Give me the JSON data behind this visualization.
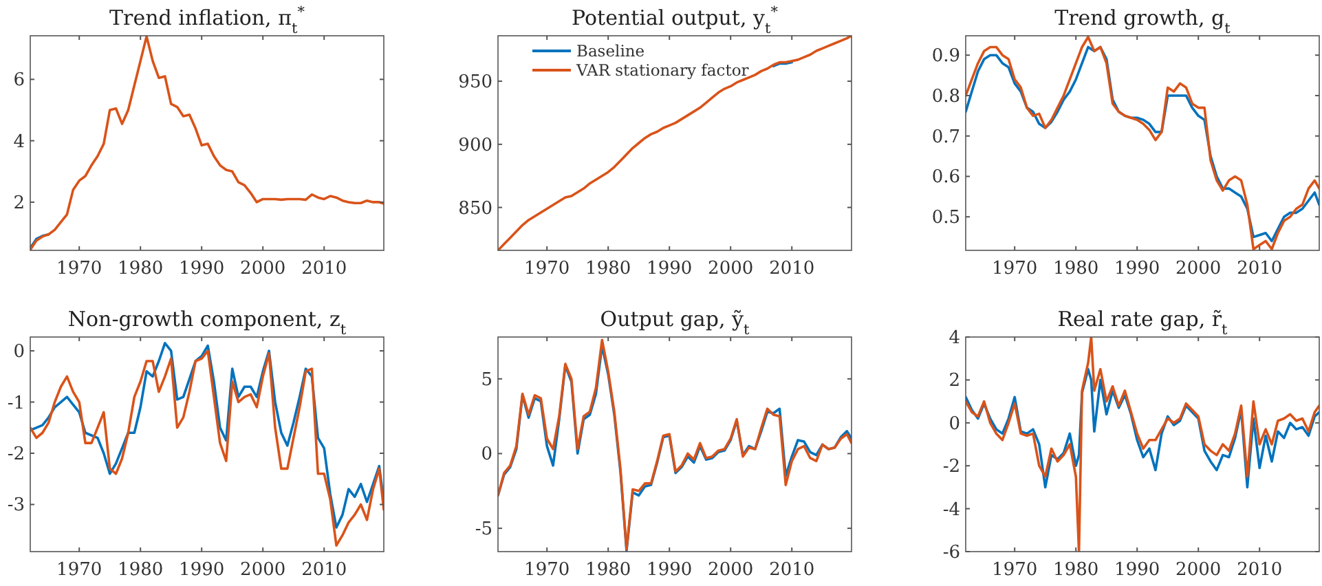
{
  "chart_data": [
    {
      "type": "line",
      "title": "Trend inflation, π$_{t}$$^{*}$",
      "xlim": [
        1962,
        2019.75
      ],
      "xticks": [
        1970,
        1980,
        1990,
        2000,
        2010
      ],
      "ylim": [
        0.43,
        7.42
      ],
      "yticks": [
        2,
        4,
        6
      ],
      "grid": false,
      "legend": false,
      "x": [
        1962,
        1963,
        1964,
        1965,
        1966,
        1967,
        1968,
        1969,
        1970,
        1971,
        1972,
        1973,
        1974,
        1975,
        1976,
        1977,
        1978,
        1979,
        1980,
        1981,
        1982,
        1983,
        1984,
        1985,
        1986,
        1987,
        1988,
        1989,
        1990,
        1991,
        1992,
        1993,
        1994,
        1995,
        1996,
        1997,
        1998,
        1999,
        2000,
        2001,
        2002,
        2003,
        2004,
        2005,
        2006,
        2007,
        2008,
        2009,
        2010,
        2011,
        2012,
        2013,
        2014,
        2015,
        2016,
        2017,
        2018,
        2019,
        2019.75
      ],
      "series": [
        {
          "color": "#0072bd",
          "values": [
            0.5,
            0.8,
            0.9,
            0.95,
            null,
            null,
            null,
            null,
            null,
            null,
            null,
            null,
            null,
            null,
            null,
            null,
            null,
            null,
            null,
            null,
            null,
            null,
            null,
            null,
            null,
            null,
            null,
            null,
            null,
            null,
            null,
            null,
            null,
            null,
            null,
            null,
            null,
            null,
            null,
            null,
            null,
            null,
            null,
            null,
            null,
            null,
            null,
            null,
            null,
            null,
            null,
            null,
            null,
            null,
            null,
            null,
            null,
            null,
            null
          ]
        },
        {
          "color": "#d95319",
          "values": [
            0.45,
            0.75,
            0.88,
            0.95,
            1.1,
            1.35,
            1.6,
            2.4,
            2.7,
            2.85,
            3.2,
            3.5,
            3.9,
            5.0,
            5.05,
            4.55,
            5.0,
            5.8,
            6.6,
            7.4,
            6.6,
            6.05,
            6.1,
            5.2,
            5.1,
            4.8,
            4.85,
            4.4,
            3.85,
            3.9,
            3.5,
            3.2,
            3.05,
            3.0,
            2.65,
            2.55,
            2.3,
            2.0,
            2.1,
            2.1,
            2.1,
            2.08,
            2.1,
            2.1,
            2.1,
            2.08,
            2.25,
            2.15,
            2.1,
            2.2,
            2.15,
            2.05,
            2.0,
            1.97,
            1.97,
            2.05,
            2.0,
            2.0,
            1.95
          ]
        }
      ]
    },
    {
      "type": "line",
      "title": "Potential output, y$_{t}$$^{*}$",
      "xlim": [
        1962,
        2019.75
      ],
      "xticks": [
        1970,
        1980,
        1990,
        2000,
        2010
      ],
      "ylim": [
        816,
        986
      ],
      "yticks": [
        850,
        900,
        950
      ],
      "grid": false,
      "legend": "top",
      "x": [
        1962,
        1963,
        1964,
        1965,
        1966,
        1967,
        1968,
        1969,
        1970,
        1971,
        1972,
        1973,
        1974,
        1975,
        1976,
        1977,
        1978,
        1979,
        1980,
        1981,
        1982,
        1983,
        1984,
        1985,
        1986,
        1987,
        1988,
        1989,
        1990,
        1991,
        1992,
        1993,
        1994,
        1995,
        1996,
        1997,
        1998,
        1999,
        2000,
        2001,
        2002,
        2003,
        2004,
        2005,
        2006,
        2007,
        2008,
        2009,
        2010,
        2011,
        2012,
        2013,
        2014,
        2015,
        2016,
        2017,
        2018,
        2019,
        2019.75
      ],
      "series": [
        {
          "name": "Baseline",
          "color": "#0072bd",
          "values": [
            null,
            null,
            null,
            null,
            null,
            null,
            null,
            null,
            null,
            null,
            null,
            null,
            null,
            null,
            null,
            null,
            null,
            null,
            null,
            null,
            null,
            null,
            null,
            null,
            null,
            null,
            null,
            null,
            null,
            null,
            null,
            null,
            null,
            null,
            null,
            null,
            null,
            null,
            null,
            null,
            null,
            null,
            null,
            null,
            null,
            962,
            964,
            964,
            965,
            null,
            null,
            null,
            null,
            null,
            null,
            null,
            null,
            null,
            null
          ]
        },
        {
          "name": "VAR stationary factor",
          "color": "#d95319",
          "values": [
            816,
            821,
            826,
            831,
            836,
            840,
            843,
            846,
            849,
            852,
            855,
            858,
            859,
            862,
            865,
            869,
            872,
            875,
            878,
            882,
            887,
            892,
            897,
            901,
            905,
            908,
            910,
            913,
            915,
            917,
            920,
            923,
            926,
            929,
            933,
            937,
            941,
            944,
            946,
            949,
            951,
            953,
            955,
            958,
            960,
            963,
            965,
            965,
            966,
            967,
            969,
            971,
            974,
            976,
            978,
            980,
            982,
            984,
            986
          ]
        }
      ]
    },
    {
      "type": "line",
      "title": "Trend growth, g$_{t}$",
      "xlim": [
        1962,
        2019.75
      ],
      "xticks": [
        1970,
        1980,
        1990,
        2000,
        2010
      ],
      "ylim": [
        0.417,
        0.948
      ],
      "yticks": [
        0.5,
        0.6,
        0.7,
        0.8,
        0.9
      ],
      "grid": false,
      "legend": false,
      "x": [
        1962,
        1963,
        1964,
        1965,
        1966,
        1967,
        1968,
        1969,
        1970,
        1971,
        1972,
        1973,
        1974,
        1975,
        1976,
        1977,
        1978,
        1979,
        1980,
        1981,
        1982,
        1983,
        1984,
        1985,
        1986,
        1987,
        1988,
        1989,
        1990,
        1991,
        1992,
        1993,
        1994,
        1995,
        1996,
        1997,
        1998,
        1999,
        2000,
        2001,
        2002,
        2003,
        2004,
        2005,
        2006,
        2007,
        2008,
        2009,
        2010,
        2011,
        2012,
        2013,
        2014,
        2015,
        2016,
        2017,
        2018,
        2019,
        2019.75
      ],
      "series": [
        {
          "color": "#0072bd",
          "values": [
            0.76,
            0.81,
            0.86,
            0.89,
            0.9,
            0.9,
            0.88,
            0.87,
            0.83,
            0.81,
            0.77,
            0.76,
            0.73,
            0.72,
            0.735,
            0.76,
            0.79,
            0.81,
            0.84,
            0.88,
            0.92,
            0.91,
            0.92,
            0.89,
            0.79,
            0.76,
            0.75,
            0.745,
            0.745,
            0.74,
            0.73,
            0.71,
            0.71,
            0.8,
            0.8,
            0.8,
            0.8,
            0.77,
            0.75,
            0.74,
            0.65,
            0.6,
            0.57,
            0.57,
            0.56,
            0.55,
            0.52,
            0.45,
            0.455,
            0.46,
            0.44,
            0.47,
            0.5,
            0.51,
            0.51,
            0.52,
            0.54,
            0.56,
            0.53
          ]
        },
        {
          "color": "#d95319",
          "values": [
            0.8,
            0.84,
            0.88,
            0.91,
            0.92,
            0.92,
            0.9,
            0.89,
            0.84,
            0.82,
            0.77,
            0.75,
            0.755,
            0.72,
            0.74,
            0.77,
            0.8,
            0.84,
            0.88,
            0.92,
            0.945,
            0.91,
            0.92,
            0.88,
            0.78,
            0.76,
            0.75,
            0.745,
            0.74,
            0.73,
            0.715,
            0.69,
            0.71,
            0.82,
            0.81,
            0.83,
            0.82,
            0.78,
            0.77,
            0.77,
            0.64,
            0.59,
            0.565,
            0.59,
            0.6,
            0.59,
            0.53,
            0.42,
            0.43,
            0.44,
            0.42,
            0.46,
            0.49,
            0.5,
            0.52,
            0.53,
            0.57,
            0.59,
            0.57
          ]
        }
      ]
    },
    {
      "type": "line",
      "title": "Non-growth component, z$_{t}$",
      "xlim": [
        1962,
        2019.75
      ],
      "xticks": [
        1970,
        1980,
        1990,
        2000,
        2010
      ],
      "ylim": [
        -3.92,
        0.27
      ],
      "yticks": [
        -3,
        -2,
        -1,
        0
      ],
      "grid": false,
      "legend": false,
      "x": [
        1962,
        1963,
        1964,
        1965,
        1966,
        1967,
        1968,
        1969,
        1970,
        1971,
        1972,
        1973,
        1974,
        1975,
        1976,
        1977,
        1978,
        1979,
        1980,
        1981,
        1982,
        1983,
        1984,
        1985,
        1986,
        1987,
        1988,
        1989,
        1990,
        1991,
        1992,
        1993,
        1994,
        1995,
        1996,
        1997,
        1998,
        1999,
        2000,
        2001,
        2002,
        2003,
        2004,
        2005,
        2006,
        2007,
        2008,
        2009,
        2010,
        2011,
        2012,
        2013,
        2014,
        2015,
        2016,
        2017,
        2018,
        2019,
        2019.75
      ],
      "series": [
        {
          "color": "#0072bd",
          "values": [
            -1.55,
            -1.5,
            -1.45,
            -1.3,
            -1.1,
            -1.0,
            -0.9,
            -1.05,
            -1.2,
            -1.6,
            -1.65,
            -1.7,
            -2.0,
            -2.4,
            -2.2,
            -1.9,
            -1.6,
            -1.6,
            -1.1,
            -0.4,
            -0.5,
            -0.2,
            0.15,
            0.0,
            -0.95,
            -0.9,
            -0.55,
            -0.2,
            -0.1,
            0.1,
            -0.6,
            -1.5,
            -1.75,
            -0.35,
            -0.9,
            -0.7,
            -0.7,
            -0.9,
            -0.4,
            0.0,
            -1.0,
            -1.6,
            -1.85,
            -1.4,
            -0.9,
            -0.35,
            -0.5,
            -1.7,
            -1.9,
            -2.8,
            -3.45,
            -3.2,
            -2.7,
            -2.85,
            -2.6,
            -2.95,
            -2.6,
            -2.25,
            -2.95
          ]
        },
        {
          "color": "#d95319",
          "values": [
            -1.5,
            -1.7,
            -1.6,
            -1.4,
            -1.0,
            -0.7,
            -0.5,
            -0.8,
            -1.0,
            -1.8,
            -1.8,
            -1.5,
            -1.2,
            -2.3,
            -2.4,
            -2.1,
            -1.6,
            -0.9,
            -0.6,
            -0.2,
            -0.2,
            -0.8,
            -0.5,
            -0.15,
            -1.5,
            -1.3,
            -0.8,
            -0.2,
            -0.15,
            0.0,
            -0.9,
            -1.8,
            -2.15,
            -0.6,
            -1.0,
            -0.9,
            -0.85,
            -1.1,
            -0.5,
            -0.05,
            -1.5,
            -2.3,
            -2.3,
            -1.7,
            -1.1,
            -0.4,
            -0.35,
            -2.4,
            -2.4,
            -2.9,
            -3.8,
            -3.6,
            -3.35,
            -3.2,
            -3.0,
            -3.3,
            -2.7,
            -2.3,
            -3.1
          ]
        }
      ]
    },
    {
      "type": "line",
      "title": "Output gap, ỹ$_{t}$",
      "xlim": [
        1962,
        2019.75
      ],
      "xticks": [
        1970,
        1980,
        1990,
        2000,
        2010
      ],
      "ylim": [
        -6.56,
        7.8
      ],
      "yticks": [
        -5,
        0,
        5
      ],
      "grid": false,
      "legend": false,
      "x": [
        1962,
        1963,
        1964,
        1965,
        1966,
        1967,
        1968,
        1969,
        1970,
        1971,
        1972,
        1973,
        1974,
        1975,
        1976,
        1977,
        1978,
        1979,
        1980,
        1981,
        1982,
        1983,
        1984,
        1985,
        1986,
        1987,
        1988,
        1989,
        1990,
        1991,
        1992,
        1993,
        1994,
        1995,
        1996,
        1997,
        1998,
        1999,
        2000,
        2001,
        2002,
        2003,
        2004,
        2005,
        2006,
        2007,
        2008,
        2009,
        2010,
        2011,
        2012,
        2013,
        2014,
        2015,
        2016,
        2017,
        2018,
        2019,
        2019.75
      ],
      "series": [
        {
          "color": "#0072bd",
          "values": [
            -2.8,
            -1.4,
            -0.9,
            0.3,
            3.9,
            2.4,
            3.7,
            3.5,
            0.5,
            -0.8,
            2.3,
            5.9,
            4.8,
            0.0,
            2.3,
            2.6,
            4.0,
            7.2,
            5.3,
            2.6,
            -1.2,
            -6.5,
            -2.6,
            -2.8,
            -2.2,
            -2.1,
            -0.6,
            1.1,
            1.2,
            -1.3,
            -0.9,
            -0.2,
            -0.6,
            0.5,
            -0.4,
            -0.3,
            0.1,
            0.2,
            0.9,
            2.2,
            -0.1,
            0.5,
            0.3,
            1.5,
            2.8,
            2.7,
            3.0,
            -1.5,
            -0.2,
            0.9,
            0.8,
            0.1,
            -0.1,
            0.6,
            0.3,
            0.4,
            1.1,
            1.5,
            1.0
          ]
        },
        {
          "color": "#d95319",
          "values": [
            -2.8,
            -1.3,
            -0.8,
            0.5,
            4.0,
            2.6,
            3.9,
            3.7,
            1.0,
            0.3,
            2.5,
            6.0,
            5.0,
            0.3,
            2.5,
            2.8,
            4.4,
            7.6,
            5.5,
            2.8,
            -1.0,
            -6.4,
            -2.4,
            -2.5,
            -2.0,
            -2.0,
            -0.5,
            1.2,
            1.3,
            -1.2,
            -0.8,
            0.0,
            -0.4,
            0.7,
            -0.3,
            -0.2,
            0.2,
            0.3,
            1.0,
            2.3,
            -0.2,
            0.4,
            0.3,
            1.7,
            3.0,
            2.6,
            2.5,
            -2.1,
            -0.5,
            0.3,
            0.5,
            -0.3,
            -0.5,
            0.6,
            0.3,
            0.4,
            1.0,
            1.3,
            0.7
          ]
        }
      ]
    },
    {
      "type": "line",
      "title": "Real rate gap, r̃$_{t}$",
      "xlim": [
        1962,
        2019.75
      ],
      "xticks": [
        1970,
        1980,
        1990,
        2000,
        2010
      ],
      "ylim": [
        -6,
        4
      ],
      "yticks": [
        -6,
        -4,
        -2,
        0,
        2,
        4
      ],
      "grid": false,
      "legend": false,
      "x": [
        1962,
        1963,
        1964,
        1965,
        1966,
        1967,
        1968,
        1969,
        1970,
        1971,
        1972,
        1973,
        1974,
        1975,
        1976,
        1977,
        1978,
        1979,
        1980,
        1980.5,
        1981,
        1982,
        1982.5,
        1983,
        1984,
        1985,
        1986,
        1987,
        1988,
        1989,
        1990,
        1991,
        1992,
        1993,
        1994,
        1995,
        1996,
        1997,
        1998,
        1999,
        2000,
        2001,
        2002,
        2003,
        2004,
        2005,
        2006,
        2007,
        2008,
        2009,
        2010,
        2011,
        2012,
        2013,
        2014,
        2015,
        2016,
        2017,
        2018,
        2019,
        2019.75
      ],
      "series": [
        {
          "color": "#0072bd",
          "values": [
            1.2,
            0.6,
            0.2,
            0.9,
            0.2,
            -0.3,
            -0.5,
            0.2,
            1.2,
            -0.4,
            -0.5,
            -0.3,
            -1.0,
            -3.0,
            -1.5,
            -1.7,
            -1.4,
            -0.5,
            -2.0,
            -1.5,
            1.4,
            2.5,
            2.0,
            -0.4,
            2.0,
            0.4,
            1.5,
            0.7,
            1.3,
            0.4,
            -0.8,
            -1.6,
            -1.2,
            -2.2,
            -0.5,
            0.3,
            -0.1,
            0.1,
            0.8,
            0.5,
            0.2,
            -1.3,
            -1.8,
            -2.2,
            -1.5,
            -1.6,
            -0.7,
            0.6,
            -3.0,
            0.2,
            -2.1,
            -0.6,
            -1.8,
            -0.4,
            -0.7,
            0.0,
            -0.3,
            -0.2,
            -0.6,
            0.3,
            0.5
          ]
        },
        {
          "color": "#d95319",
          "values": [
            1.0,
            0.5,
            0.3,
            1.0,
            0.0,
            -0.5,
            -0.8,
            0.0,
            0.9,
            -0.5,
            -0.6,
            -0.5,
            -2.0,
            -2.5,
            -1.2,
            -1.8,
            -1.5,
            -1.0,
            -2.5,
            -6.0,
            1.5,
            2.8,
            4.0,
            1.5,
            2.5,
            1.0,
            1.7,
            0.8,
            1.5,
            0.5,
            -0.5,
            -1.2,
            -0.8,
            -0.8,
            -0.3,
            0.2,
            0.0,
            0.2,
            0.9,
            0.6,
            0.3,
            -1.0,
            -1.3,
            -1.5,
            -1.0,
            -1.3,
            -0.5,
            0.8,
            -2.5,
            1.0,
            -1.0,
            -0.3,
            -1.0,
            0.1,
            0.2,
            0.4,
            0.1,
            0.2,
            -0.4,
            0.5,
            0.8
          ]
        }
      ]
    }
  ]
}
